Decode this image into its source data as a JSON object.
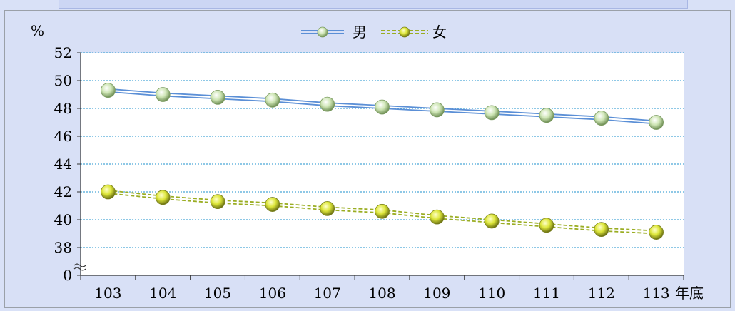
{
  "chart_data": {
    "type": "line",
    "title": "",
    "ylabel": "%",
    "xlabel": "年底",
    "categories": [
      "103",
      "104",
      "105",
      "106",
      "107",
      "108",
      "109",
      "110",
      "111",
      "112",
      "113"
    ],
    "series": [
      {
        "name": "男",
        "values": [
          49.3,
          49.0,
          48.8,
          48.6,
          48.3,
          48.1,
          47.9,
          47.7,
          47.5,
          47.3,
          47.0
        ],
        "color": "#5b8fd6",
        "marker": "#dff0d0"
      },
      {
        "name": "女",
        "values": [
          42.0,
          41.6,
          41.3,
          41.1,
          40.8,
          40.6,
          40.2,
          39.9,
          39.6,
          39.3,
          39.1
        ],
        "color": "#9aad22",
        "marker": "#e6f04a"
      }
    ],
    "yticks": [
      "0",
      "38",
      "40",
      "42",
      "44",
      "46",
      "48",
      "50",
      "52"
    ],
    "ylim": [
      36,
      52
    ],
    "axis_break": true,
    "grid": true,
    "legend_position": "top-center"
  }
}
